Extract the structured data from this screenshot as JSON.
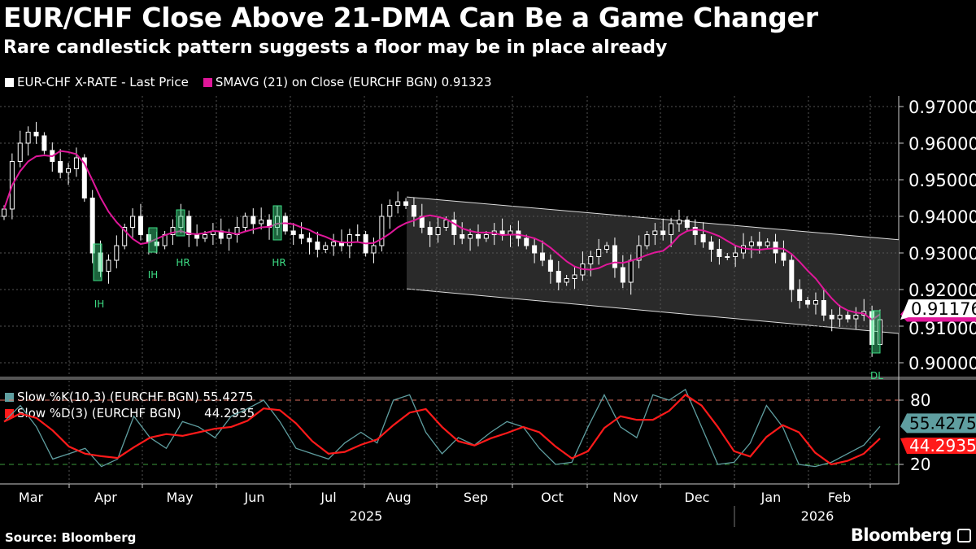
{
  "title": "EUR/CHF Close Above 21-DMA Can Be a Game Changer",
  "subtitle": "Rare candlestick pattern suggests a floor may be in place already",
  "source": "Source: Bloomberg",
  "brand": "Bloomberg",
  "colors": {
    "candle": "#ffffff",
    "sma": "#e0179a",
    "k": "#5f9ea0",
    "d": "#ff1a1a",
    "pattern": "#3ddc84",
    "channel": "#2a2a2a"
  },
  "chart_data": [
    {
      "type": "candlestick",
      "legend": [
        "EUR-CHF X-RATE - Last Price",
        "SMAVG (21)  on Close (EURCHF BGN) 0.91323"
      ],
      "x_range": [
        "2025-02-24",
        "2026-03-02"
      ],
      "month_labels": [
        "Mar",
        "Apr",
        "May",
        "Jun",
        "Jul",
        "Aug",
        "Sep",
        "Oct",
        "Nov",
        "Dec",
        "Jan",
        "Feb"
      ],
      "year_labels": [
        "2025",
        "2026"
      ],
      "y_ticks": [
        "0.97000",
        "0.96000",
        "0.95000",
        "0.94000",
        "0.93000",
        "0.92000",
        "0.91000",
        "0.90000"
      ],
      "ylim": [
        0.8965,
        0.9725
      ],
      "last_price": "0.91176",
      "sma_last": 0.91323,
      "closes": [
        0.942,
        0.955,
        0.96,
        0.963,
        0.962,
        0.958,
        0.955,
        0.952,
        0.953,
        0.956,
        0.945,
        0.93,
        0.925,
        0.928,
        0.932,
        0.937,
        0.94,
        0.935,
        0.933,
        0.932,
        0.935,
        0.937,
        0.94,
        0.935,
        0.934,
        0.935,
        0.936,
        0.934,
        0.935,
        0.937,
        0.94,
        0.938,
        0.939,
        0.937,
        0.94,
        0.936,
        0.935,
        0.934,
        0.933,
        0.931,
        0.932,
        0.933,
        0.932,
        0.935,
        0.935,
        0.93,
        0.932,
        0.94,
        0.943,
        0.944,
        0.943,
        0.94,
        0.937,
        0.935,
        0.937,
        0.939,
        0.935,
        0.934,
        0.935,
        0.934,
        0.935,
        0.936,
        0.935,
        0.936,
        0.934,
        0.932,
        0.93,
        0.928,
        0.925,
        0.922,
        0.923,
        0.924,
        0.927,
        0.929,
        0.931,
        0.932,
        0.926,
        0.922,
        0.928,
        0.932,
        0.935,
        0.936,
        0.935,
        0.938,
        0.939,
        0.937,
        0.935,
        0.933,
        0.931,
        0.929,
        0.929,
        0.93,
        0.932,
        0.933,
        0.932,
        0.933,
        0.93,
        0.928,
        0.92,
        0.917,
        0.916,
        0.917,
        0.913,
        0.912,
        0.913,
        0.912,
        0.913,
        0.914,
        0.905,
        0.91176
      ],
      "channel": {
        "upper": [
          0.9453,
          0.9336
        ],
        "lower": [
          0.9202,
          0.908
        ]
      },
      "patterns": [
        {
          "label": "IH"
        },
        {
          "label": "IH"
        },
        {
          "label": "HR"
        },
        {
          "label": "HR"
        },
        {
          "label": "DL"
        }
      ]
    },
    {
      "type": "line",
      "legend": [
        "Slow %K(10,3) (EURCHF BGN) 55.4275",
        "Slow %D(3) (EURCHF BGN)      44.2935"
      ],
      "y_ticks": [
        "80",
        "20"
      ],
      "ylim": [
        -5,
        97
      ],
      "ref_lines": [
        80,
        20
      ],
      "k_last": "55.4275",
      "d_last": "44.2935",
      "k": [
        60,
        75,
        55,
        25,
        30,
        35,
        18,
        25,
        65,
        45,
        35,
        60,
        55,
        45,
        65,
        72,
        80,
        60,
        35,
        30,
        25,
        40,
        50,
        40,
        80,
        85,
        50,
        30,
        45,
        38,
        50,
        60,
        55,
        35,
        20,
        22,
        55,
        85,
        55,
        45,
        85,
        80,
        90,
        55,
        20,
        22,
        40,
        75,
        55,
        20,
        18,
        22,
        30,
        38,
        55.4275
      ]
    }
  ]
}
